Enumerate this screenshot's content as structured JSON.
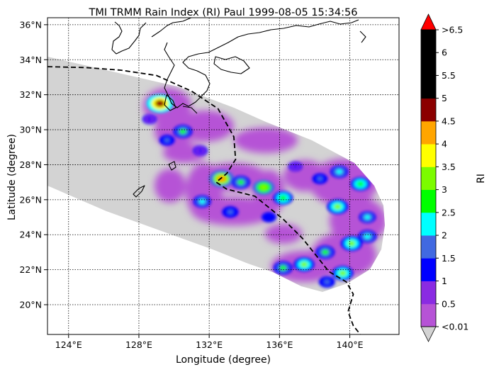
{
  "figure": {
    "title": "TMI TRMM Rain Index (RI) Paul 1999-08-05 15:34:56",
    "xlabel": "Longitude (degree)",
    "ylabel": "Latitude (degree)",
    "x_ticks": [
      "124°E",
      "128°E",
      "132°E",
      "136°E",
      "140°E"
    ],
    "y_ticks": [
      "20°N",
      "22°N",
      "24°N",
      "26°N",
      "28°N",
      "30°N",
      "32°N",
      "34°N",
      "36°N"
    ]
  },
  "map": {
    "lon_range": [
      122.8,
      142.8
    ],
    "lat_range": [
      18.3,
      36.4
    ],
    "grid": "dotted",
    "swath_color": "#d3d3d3",
    "track_style": "dashed",
    "track": [
      [
        122.8,
        33.6
      ],
      [
        125,
        33.55
      ],
      [
        127,
        33.4
      ],
      [
        129,
        33.1
      ],
      [
        131,
        32.2
      ],
      [
        132.5,
        31.2
      ],
      [
        133.4,
        29.6
      ],
      [
        133.5,
        28.3
      ],
      [
        133,
        27.5
      ],
      [
        132.4,
        27.0
      ],
      [
        133,
        26.6
      ],
      [
        134.6,
        26.2
      ],
      [
        136.2,
        24.9
      ],
      [
        137.3,
        23.8
      ],
      [
        138.1,
        22.8
      ],
      [
        138.8,
        21.9
      ],
      [
        139.8,
        21.3
      ],
      [
        140.2,
        20.6
      ],
      [
        139.9,
        19.6
      ],
      [
        140.2,
        18.8
      ],
      [
        140.6,
        18.3
      ]
    ]
  },
  "colorbar": {
    "label": "RI",
    "colors": [
      "#b653d6",
      "#8a2be2",
      "#0000ff",
      "#4169e1",
      "#00ffff",
      "#00ff00",
      "#7cfc00",
      "#ffff00",
      "#ffa500",
      "#8b0000",
      "#000000",
      "#000000",
      "#000000"
    ],
    "under_color": "#d3d3d3",
    "over_color": "#ff0000",
    "tick_labels": [
      "<0.01",
      "0.5",
      "1",
      "1.5",
      "2",
      "2.5",
      "3",
      "3.5",
      "4",
      "4.5",
      "5",
      "5.5",
      "6",
      ">6.5"
    ]
  },
  "chart_data": {
    "type": "heatmap",
    "title": "TMI TRMM Rain Index (RI) Paul 1999-08-05 15:34:56",
    "xlabel": "Longitude (degree)",
    "ylabel": "Latitude (degree)",
    "xlim": [
      122.8,
      142.8
    ],
    "ylim": [
      18.3,
      36.4
    ],
    "colorbar_label": "RI",
    "levels": [
      0.01,
      0.5,
      1,
      1.5,
      2,
      2.5,
      3,
      3.5,
      4,
      4.5,
      5,
      5.5,
      6,
      6.5
    ],
    "rain_cells": [
      {
        "lon": 129.2,
        "lat": 31.5,
        "ri": 4.7
      },
      {
        "lon": 128.6,
        "lat": 30.6,
        "ri": 1.2
      },
      {
        "lon": 129.6,
        "lat": 29.4,
        "ri": 1.6
      },
      {
        "lon": 130.5,
        "lat": 29.9,
        "ri": 2.6
      },
      {
        "lon": 131.5,
        "lat": 28.8,
        "ri": 1.3
      },
      {
        "lon": 132.7,
        "lat": 27.2,
        "ri": 4.3
      },
      {
        "lon": 133.8,
        "lat": 27.0,
        "ri": 2.5
      },
      {
        "lon": 135.1,
        "lat": 26.7,
        "ri": 3.4
      },
      {
        "lon": 136.2,
        "lat": 26.1,
        "ri": 2.8
      },
      {
        "lon": 131.6,
        "lat": 25.9,
        "ri": 2.2
      },
      {
        "lon": 133.2,
        "lat": 25.3,
        "ri": 1.9
      },
      {
        "lon": 135.4,
        "lat": 25.0,
        "ri": 1.4
      },
      {
        "lon": 136.9,
        "lat": 27.9,
        "ri": 1.1
      },
      {
        "lon": 138.3,
        "lat": 27.2,
        "ri": 1.6
      },
      {
        "lon": 139.4,
        "lat": 27.6,
        "ri": 2.3
      },
      {
        "lon": 140.6,
        "lat": 26.9,
        "ri": 2.7
      },
      {
        "lon": 139.3,
        "lat": 25.6,
        "ri": 3.2
      },
      {
        "lon": 141.0,
        "lat": 25.0,
        "ri": 2.0
      },
      {
        "lon": 140.1,
        "lat": 23.5,
        "ri": 3.3
      },
      {
        "lon": 141.0,
        "lat": 23.9,
        "ri": 2.4
      },
      {
        "lon": 138.6,
        "lat": 23.0,
        "ri": 2.6
      },
      {
        "lon": 137.4,
        "lat": 22.3,
        "ri": 3.0
      },
      {
        "lon": 136.2,
        "lat": 22.1,
        "ri": 2.6
      },
      {
        "lon": 139.6,
        "lat": 21.8,
        "ri": 3.1
      },
      {
        "lon": 138.7,
        "lat": 21.3,
        "ri": 1.8
      }
    ]
  }
}
